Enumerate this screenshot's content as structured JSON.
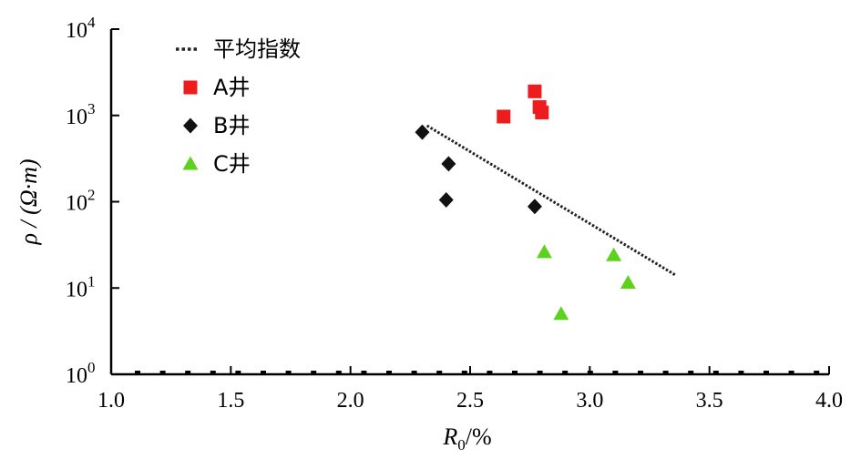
{
  "chart_data": {
    "type": "scatter",
    "xlabel": "R0/%",
    "ylabel": "ρ / (Ω·m)",
    "xlim": [
      1.0,
      4.0
    ],
    "ylim_log10": [
      0,
      4
    ],
    "y_scale": "log",
    "x_ticks": [
      "1.0",
      "1.5",
      "2.0",
      "2.5",
      "3.0",
      "3.5",
      "4.0"
    ],
    "y_ticks": [
      {
        "base": "10",
        "exp": "0"
      },
      {
        "base": "10",
        "exp": "1"
      },
      {
        "base": "10",
        "exp": "2"
      },
      {
        "base": "10",
        "exp": "3"
      },
      {
        "base": "10",
        "exp": "4"
      }
    ],
    "grid": false,
    "legend_position": "top-left",
    "series": [
      {
        "name": "平均指数",
        "kind": "trend-line",
        "style": "dotted",
        "color": "#222222",
        "points": [
          [
            2.32,
            760
          ],
          [
            3.36,
            14
          ]
        ]
      },
      {
        "name": "A井",
        "kind": "square",
        "color": "#ee1c1c",
        "points": [
          [
            2.64,
            970
          ],
          [
            2.77,
            1900
          ],
          [
            2.79,
            1250
          ],
          [
            2.8,
            1080
          ]
        ]
      },
      {
        "name": "B井",
        "kind": "diamond",
        "color": "#111111",
        "points": [
          [
            2.3,
            640
          ],
          [
            2.41,
            275
          ],
          [
            2.4,
            105
          ],
          [
            2.77,
            88
          ]
        ]
      },
      {
        "name": "C井",
        "kind": "triangle",
        "color": "#5dd21c",
        "points": [
          [
            2.81,
            26
          ],
          [
            2.88,
            5
          ],
          [
            3.1,
            24
          ],
          [
            3.16,
            11.5
          ]
        ]
      }
    ]
  }
}
